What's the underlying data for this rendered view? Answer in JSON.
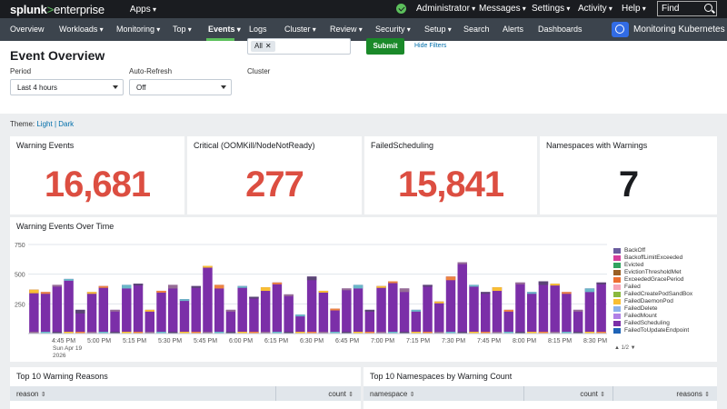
{
  "topbar": {
    "brand_a": "splunk",
    "brand_gt": ">",
    "brand_b": "enterprise",
    "apps_label": "Apps",
    "menus": [
      "Administrator",
      "Messages",
      "Settings",
      "Activity",
      "Help"
    ],
    "find_placeholder": "Find"
  },
  "appnav": {
    "items": [
      "Overview",
      "Workloads",
      "Monitoring",
      "Top",
      "Events",
      "Logs",
      "Cluster",
      "Review",
      "Security",
      "Setup",
      "Search",
      "Alerts",
      "Dashboards"
    ],
    "active": "Events",
    "app_name": "Monitoring Kubernetes"
  },
  "header": {
    "title": "Event Overview",
    "period_label": "Period",
    "period_value": "Last 4 hours",
    "refresh_label": "Auto-Refresh",
    "refresh_value": "Off",
    "cluster_label": "Cluster",
    "cluster_chip": "All",
    "submit_label": "Submit",
    "hide_filters": "Hide Filters"
  },
  "theme": {
    "label": "Theme:",
    "light": "Light",
    "sep": "|",
    "dark": "Dark"
  },
  "singles": [
    {
      "title": "Warning Events",
      "value": "16,681",
      "color": "#dc4e41"
    },
    {
      "title": "Critical (OOMKill/NodeNotReady)",
      "value": "277",
      "color": "#dc4e41"
    },
    {
      "title": "FailedScheduling",
      "value": "15,841",
      "color": "#dc4e41"
    },
    {
      "title": "Namespaces with Warnings",
      "value": "7",
      "color": "#1a1c20"
    }
  ],
  "chart_panel_title": "Warning Events Over Time",
  "chart_data": {
    "type": "bar",
    "stacked": true,
    "ylim": [
      0,
      750
    ],
    "yticks": [
      "750",
      "500",
      "250"
    ],
    "xticks": [
      "4:45 PM",
      "5:00 PM",
      "5:15 PM",
      "5:30 PM",
      "5:45 PM",
      "6:00 PM",
      "6:15 PM",
      "6:30 PM",
      "6:45 PM",
      "7:00 PM",
      "7:15 PM",
      "7:30 PM",
      "7:45 PM",
      "8:00 PM",
      "8:15 PM",
      "8:30 PM"
    ],
    "xdate": [
      "Sun Apr 19",
      "2026"
    ],
    "values": [
      370,
      350,
      410,
      460,
      200,
      350,
      400,
      200,
      410,
      420,
      200,
      360,
      410,
      290,
      400,
      570,
      410,
      200,
      400,
      310,
      390,
      430,
      330,
      160,
      480,
      360,
      210,
      380,
      410,
      200,
      400,
      440,
      380,
      200,
      410,
      270,
      480,
      600,
      410,
      350,
      390,
      200,
      430,
      350,
      440,
      420,
      350,
      200,
      380,
      430
    ],
    "top_colors": [
      "#f8be34",
      "#ed8440",
      "#956d95",
      "#6ab7c7",
      "#5a4575"
    ],
    "series_color": "#7b2fa8",
    "legend": [
      "BackOff",
      "BackoffLimitExceeded",
      "Evicted",
      "EvictionThresholdMet",
      "ExceededGracePeriod",
      "Failed",
      "FailedCreatePodSandBox",
      "FailedDaemonPod",
      "FailedDelete",
      "FailedMount",
      "FailedScheduling",
      "FailedToUpdateEndpoint"
    ],
    "legend_colors": [
      "#6a5c9e",
      "#d53d9c",
      "#31a35f",
      "#9a6024",
      "#ed6f31",
      "#f6a4b6",
      "#8ab93e",
      "#f8be34",
      "#8bb1ec",
      "#b080e6",
      "#7b2fa8",
      "#1e63b6"
    ],
    "pager": "1/2"
  },
  "tables": [
    {
      "title": "Top 10 Warning Reasons",
      "columns": [
        "reason",
        "count"
      ]
    },
    {
      "title": "Top 10 Namespaces by Warning Count",
      "columns": [
        "namespace",
        "count",
        "reasons"
      ]
    }
  ]
}
